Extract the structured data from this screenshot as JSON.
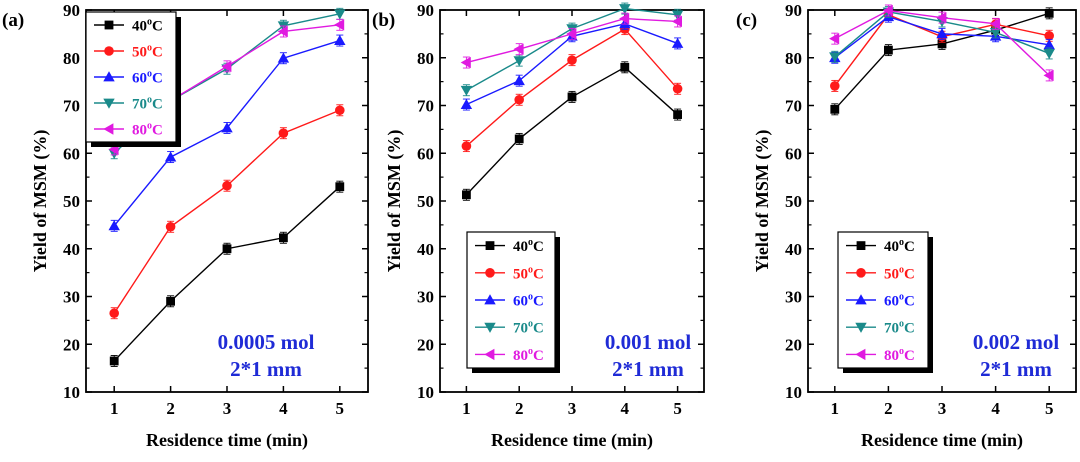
{
  "figure": {
    "colors": {
      "axis": "#000000",
      "annotation": "#1f2bd6",
      "series": [
        "#000000",
        "#ff1a1a",
        "#1a1aff",
        "#1a8a8a",
        "#e01ae0"
      ]
    },
    "markers": [
      "square",
      "circle",
      "triangle-up",
      "triangle-down",
      "triangle-left"
    ]
  },
  "chart_data": [
    {
      "type": "line",
      "panel_label": "(a)",
      "xlabel": "Residence time (min)",
      "ylabel": "Yield of MSM (%)",
      "x": [
        1,
        2,
        3,
        4,
        5
      ],
      "xticks": [
        "1",
        "2",
        "3",
        "4",
        "5"
      ],
      "xlim": [
        0.5,
        5.5
      ],
      "ylim": [
        10,
        90
      ],
      "yticks": [
        "10",
        "20",
        "30",
        "40",
        "50",
        "60",
        "70",
        "80",
        "90"
      ],
      "legend_position": "top-left",
      "annotation": [
        "0.0005 mol",
        "2*1 mm"
      ],
      "series": [
        {
          "name": "40°C",
          "legend_base": "40",
          "legend_sup": "o",
          "legend_unit": "C",
          "values": [
            16.5,
            29.0,
            40.0,
            42.3,
            53.0
          ]
        },
        {
          "name": "50°C",
          "legend_base": "50",
          "legend_sup": "o",
          "legend_unit": "C",
          "values": [
            26.5,
            44.6,
            53.2,
            64.2,
            69.0
          ]
        },
        {
          "name": "60°C",
          "legend_base": "60",
          "legend_sup": "o",
          "legend_unit": "C",
          "values": [
            44.8,
            59.2,
            65.3,
            79.9,
            83.6
          ]
        },
        {
          "name": "70°C",
          "legend_base": "70",
          "legend_sup": "o",
          "legend_unit": "C",
          "values": [
            60.0,
            71.0,
            77.7,
            86.7,
            89.2
          ]
        },
        {
          "name": "80°C",
          "legend_base": "80",
          "legend_sup": "o",
          "legend_unit": "C",
          "values": [
            60.8,
            71.0,
            78.2,
            85.5,
            86.9
          ]
        }
      ]
    },
    {
      "type": "line",
      "panel_label": "(b)",
      "xlabel": "Residence time (min)",
      "ylabel": "Yield of MSM (%)",
      "x": [
        1,
        2,
        3,
        4,
        5
      ],
      "xticks": [
        "1",
        "2",
        "3",
        "4",
        "5"
      ],
      "xlim": [
        0.5,
        5.5
      ],
      "ylim": [
        10,
        90
      ],
      "yticks": [
        "10",
        "20",
        "30",
        "40",
        "50",
        "60",
        "70",
        "80",
        "90"
      ],
      "legend_position": "bottom-left",
      "annotation": [
        "0.001 mol",
        "2*1 mm"
      ],
      "series": [
        {
          "name": "40°C",
          "legend_base": "40",
          "legend_sup": "o",
          "legend_unit": "C",
          "values": [
            51.3,
            63.0,
            71.8,
            78.0,
            68.1
          ]
        },
        {
          "name": "50°C",
          "legend_base": "50",
          "legend_sup": "o",
          "legend_unit": "C",
          "values": [
            61.5,
            71.2,
            79.5,
            86.0,
            73.5
          ]
        },
        {
          "name": "60°C",
          "legend_base": "60",
          "legend_sup": "o",
          "legend_unit": "C",
          "values": [
            70.2,
            75.2,
            84.5,
            87.1,
            83.0
          ]
        },
        {
          "name": "70°C",
          "legend_base": "70",
          "legend_sup": "o",
          "legend_unit": "C",
          "values": [
            73.2,
            79.4,
            86.1,
            90.3,
            89.0
          ]
        },
        {
          "name": "80°C",
          "legend_base": "80",
          "legend_sup": "o",
          "legend_unit": "C",
          "values": [
            79.0,
            81.8,
            85.0,
            88.2,
            87.6
          ]
        }
      ]
    },
    {
      "type": "line",
      "panel_label": "(c)",
      "xlabel": "Residence time (min)",
      "ylabel": "Yield of MSM (%)",
      "x": [
        1,
        2,
        3,
        4,
        5
      ],
      "xticks": [
        "1",
        "2",
        "3",
        "4",
        "5"
      ],
      "xlim": [
        0.5,
        5.5
      ],
      "ylim": [
        10,
        90
      ],
      "yticks": [
        "10",
        "20",
        "30",
        "40",
        "50",
        "60",
        "70",
        "80",
        "90"
      ],
      "legend_position": "bottom-left",
      "annotation": [
        "0.002 mol",
        "2*1 mm"
      ],
      "series": [
        {
          "name": "40°C",
          "legend_base": "40",
          "legend_sup": "o",
          "legend_unit": "C",
          "values": [
            69.2,
            81.6,
            82.9,
            85.8,
            89.3
          ]
        },
        {
          "name": "50°C",
          "legend_base": "50",
          "legend_sup": "o",
          "legend_unit": "C",
          "values": [
            74.1,
            89.0,
            84.4,
            87.0,
            84.6
          ]
        },
        {
          "name": "60°C",
          "legend_base": "60",
          "legend_sup": "o",
          "legend_unit": "C",
          "values": [
            80.0,
            88.6,
            85.0,
            84.5,
            82.7
          ]
        },
        {
          "name": "70°C",
          "legend_base": "70",
          "legend_sup": "o",
          "legend_unit": "C",
          "values": [
            80.2,
            89.6,
            87.6,
            85.3,
            80.9
          ]
        },
        {
          "name": "80°C",
          "legend_base": "80",
          "legend_sup": "o",
          "legend_unit": "C",
          "values": [
            84.0,
            89.9,
            88.4,
            87.1,
            76.3
          ]
        }
      ]
    }
  ]
}
